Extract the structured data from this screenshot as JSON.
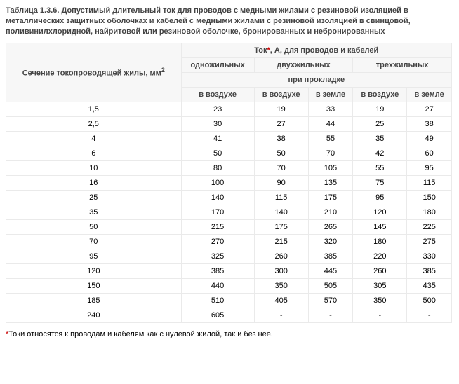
{
  "title_parts": {
    "prefix": "Таблица 1.3.6.   ",
    "body": "Допустимый длительный ток для проводов с медными жилами с резиновой изоляцией в металлических защитных оболочках и кабелей с медными жилами с резиновой изоляцией в свинцовой, поливинилхлоридной, найритовой или резиновой оболочке, бронированных  и небронированных"
  },
  "table": {
    "row_header": "Сечение токопроводящей жилы, мм",
    "row_header_sup": "2",
    "top_header_prefix": "Ток",
    "top_header_suffix": ", А, для проводов и кабелей",
    "group_headers": {
      "c1": "одножильных",
      "c2": "двухжильных",
      "c3": "трехжильных"
    },
    "sub_header": "при прокладке",
    "col_headers": {
      "a": "в воздухе",
      "b": "в воздухе",
      "c": "в земле",
      "d": "в воздухе",
      "e": "в земле"
    },
    "rows": [
      {
        "s": "1,5",
        "v": [
          "23",
          "19",
          "33",
          "19",
          "27"
        ]
      },
      {
        "s": "2,5",
        "v": [
          "30",
          "27",
          "44",
          "25",
          "38"
        ]
      },
      {
        "s": "4",
        "v": [
          "41",
          "38",
          "55",
          "35",
          "49"
        ]
      },
      {
        "s": "6",
        "v": [
          "50",
          "50",
          "70",
          "42",
          "60"
        ]
      },
      {
        "s": "10",
        "v": [
          "80",
          "70",
          "105",
          "55",
          "95"
        ]
      },
      {
        "s": "16",
        "v": [
          "100",
          "90",
          "135",
          "75",
          "115"
        ]
      },
      {
        "s": "25",
        "v": [
          "140",
          "115",
          "175",
          "95",
          "150"
        ]
      },
      {
        "s": "35",
        "v": [
          "170",
          "140",
          "210",
          "120",
          "180"
        ]
      },
      {
        "s": "50",
        "v": [
          "215",
          "175",
          "265",
          "145",
          "225"
        ]
      },
      {
        "s": "70",
        "v": [
          "270",
          "215",
          "320",
          "180",
          "275"
        ]
      },
      {
        "s": "95",
        "v": [
          "325",
          "260",
          "385",
          "220",
          "330"
        ]
      },
      {
        "s": "120",
        "v": [
          "385",
          "300",
          "445",
          "260",
          "385"
        ]
      },
      {
        "s": "150",
        "v": [
          "440",
          "350",
          "505",
          "305",
          "435"
        ]
      },
      {
        "s": "185",
        "v": [
          "510",
          "405",
          "570",
          "350",
          "500"
        ]
      },
      {
        "s": "240",
        "v": [
          "605",
          "-",
          "-",
          "-",
          "-"
        ]
      }
    ]
  },
  "footnote": "Токи относятся к проводам и кабелям как с нулевой жилой, так и без нее.",
  "star": "*",
  "colors": {
    "header_bg": "#f7f7f7",
    "border": "#eaeaea",
    "text_dark": "#444444",
    "red": "#cc0000"
  }
}
